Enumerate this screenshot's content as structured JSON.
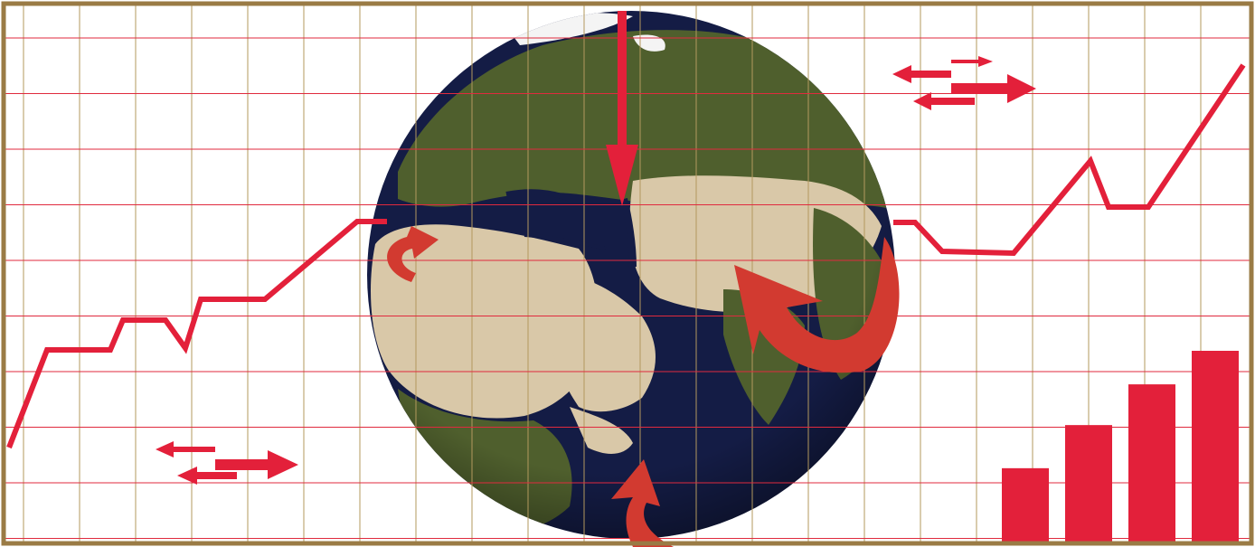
{
  "illustration": {
    "colors": {
      "frame": "#9a7b45",
      "grid_horizontal": "#e02a3e",
      "grid_vertical": "#b3995e",
      "accent_red": "#e3203a",
      "arrow_red": "#d23a30",
      "ocean": "#141c45",
      "land_desert": "#d9c8a8",
      "land_green": "#4f5f2d",
      "ice": "#f4f4f4"
    },
    "globe": {
      "icon": "globe-eurasia-africa"
    },
    "trend_line": {
      "trend": "rising",
      "icon": "line-trend"
    },
    "bar_chart": {
      "bar_values": [
        0.31,
        0.49,
        0.66,
        0.8
      ]
    },
    "exchange_arrows": {
      "icon": "two-way-arrows"
    },
    "flow_arrows": {
      "icon": "curved-arrows"
    }
  }
}
